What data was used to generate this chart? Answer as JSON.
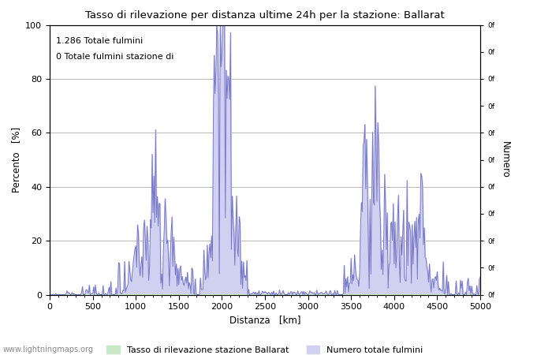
{
  "title": "Tasso di rilevazione per distanza ultime 24h per la stazione: Ballarat",
  "xlabel": "Distanza   [km]",
  "ylabel_left": "Percento   [%]",
  "ylabel_right": "Numero",
  "annotation_line1": "1.286 Totale fulmini",
  "annotation_line2": "0 Totale fulmini stazione di",
  "legend_label1": "Tasso di rilevazione stazione Ballarat",
  "legend_label2": "Numero totale fulmini",
  "watermark": "www.lightningmaps.org",
  "xlim": [
    0,
    5000
  ],
  "ylim": [
    0,
    100
  ],
  "fill_color_green": "#c8e8c8",
  "fill_color_blue": "#d0d0f0",
  "line_color": "#7878c8",
  "background_color": "#ffffff",
  "grid_color": "#b0b0b0",
  "right_tick_labels": [
    "0f",
    "0f",
    "0f",
    "0f",
    "0f",
    "0f",
    "0f",
    "0f",
    "0f",
    "0f",
    "0f",
    "0f",
    "0f"
  ],
  "yticks": [
    0,
    20,
    40,
    60,
    80,
    100
  ],
  "xticks": [
    0,
    500,
    1000,
    1500,
    2000,
    2500,
    3000,
    3500,
    4000,
    4500,
    5000
  ]
}
